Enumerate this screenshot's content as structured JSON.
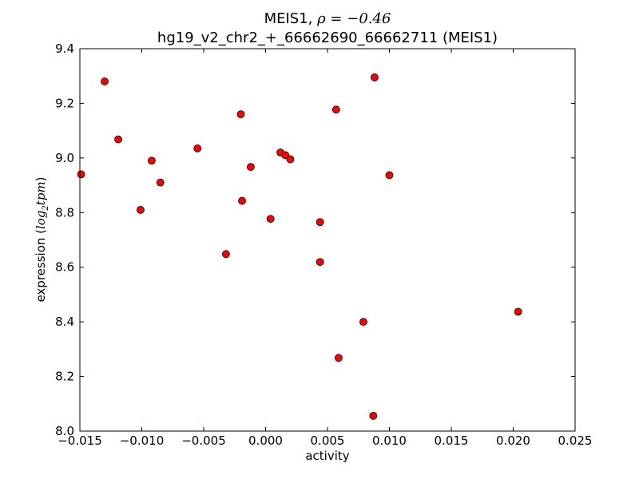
{
  "chart_data": {
    "type": "scatter",
    "title_prefix": "MEIS1, ",
    "title_rho": "ρ = −0.46",
    "subtitle": "hg19_v2_chr2_+_66662690_66662711 (MEIS1)",
    "xlabel": "activity",
    "ylabel_text": "expression (",
    "ylabel_math_base": "log",
    "ylabel_math_sub": "2",
    "ylabel_math_unit": "tpm",
    "ylabel_close": ")",
    "xlim": [
      -0.015,
      0.025
    ],
    "ylim": [
      8.0,
      9.4
    ],
    "xticks": [
      -0.015,
      -0.01,
      -0.005,
      0.0,
      0.005,
      0.01,
      0.015,
      0.02,
      0.025
    ],
    "xtick_labels": [
      "−0.015",
      "−0.010",
      "−0.005",
      "0.000",
      "0.005",
      "0.010",
      "0.015",
      "0.020",
      "0.025"
    ],
    "yticks": [
      8.0,
      8.2,
      8.4,
      8.6,
      8.8,
      9.0,
      9.2,
      9.4
    ],
    "ytick_labels": [
      "8.0",
      "8.2",
      "8.4",
      "8.6",
      "8.8",
      "9.0",
      "9.2",
      "9.4"
    ],
    "grid": false,
    "marker_color": "#ff0000",
    "points": [
      {
        "x": -0.0149,
        "y": 8.94
      },
      {
        "x": -0.013,
        "y": 9.28
      },
      {
        "x": -0.0119,
        "y": 9.068
      },
      {
        "x": -0.0101,
        "y": 8.81
      },
      {
        "x": -0.0092,
        "y": 8.99
      },
      {
        "x": -0.0085,
        "y": 8.91
      },
      {
        "x": -0.0055,
        "y": 9.035
      },
      {
        "x": -0.0032,
        "y": 8.648
      },
      {
        "x": -0.002,
        "y": 9.16
      },
      {
        "x": -0.0019,
        "y": 8.843
      },
      {
        "x": -0.0012,
        "y": 8.967
      },
      {
        "x": 0.0004,
        "y": 8.777
      },
      {
        "x": 0.0012,
        "y": 9.02
      },
      {
        "x": 0.0016,
        "y": 9.01
      },
      {
        "x": 0.002,
        "y": 8.995
      },
      {
        "x": 0.0044,
        "y": 8.765
      },
      {
        "x": 0.0044,
        "y": 8.619
      },
      {
        "x": 0.0057,
        "y": 9.177
      },
      {
        "x": 0.0059,
        "y": 8.268
      },
      {
        "x": 0.0079,
        "y": 8.4
      },
      {
        "x": 0.0087,
        "y": 8.056
      },
      {
        "x": 0.0088,
        "y": 9.295
      },
      {
        "x": 0.01,
        "y": 8.937
      },
      {
        "x": 0.0204,
        "y": 8.437
      }
    ]
  }
}
